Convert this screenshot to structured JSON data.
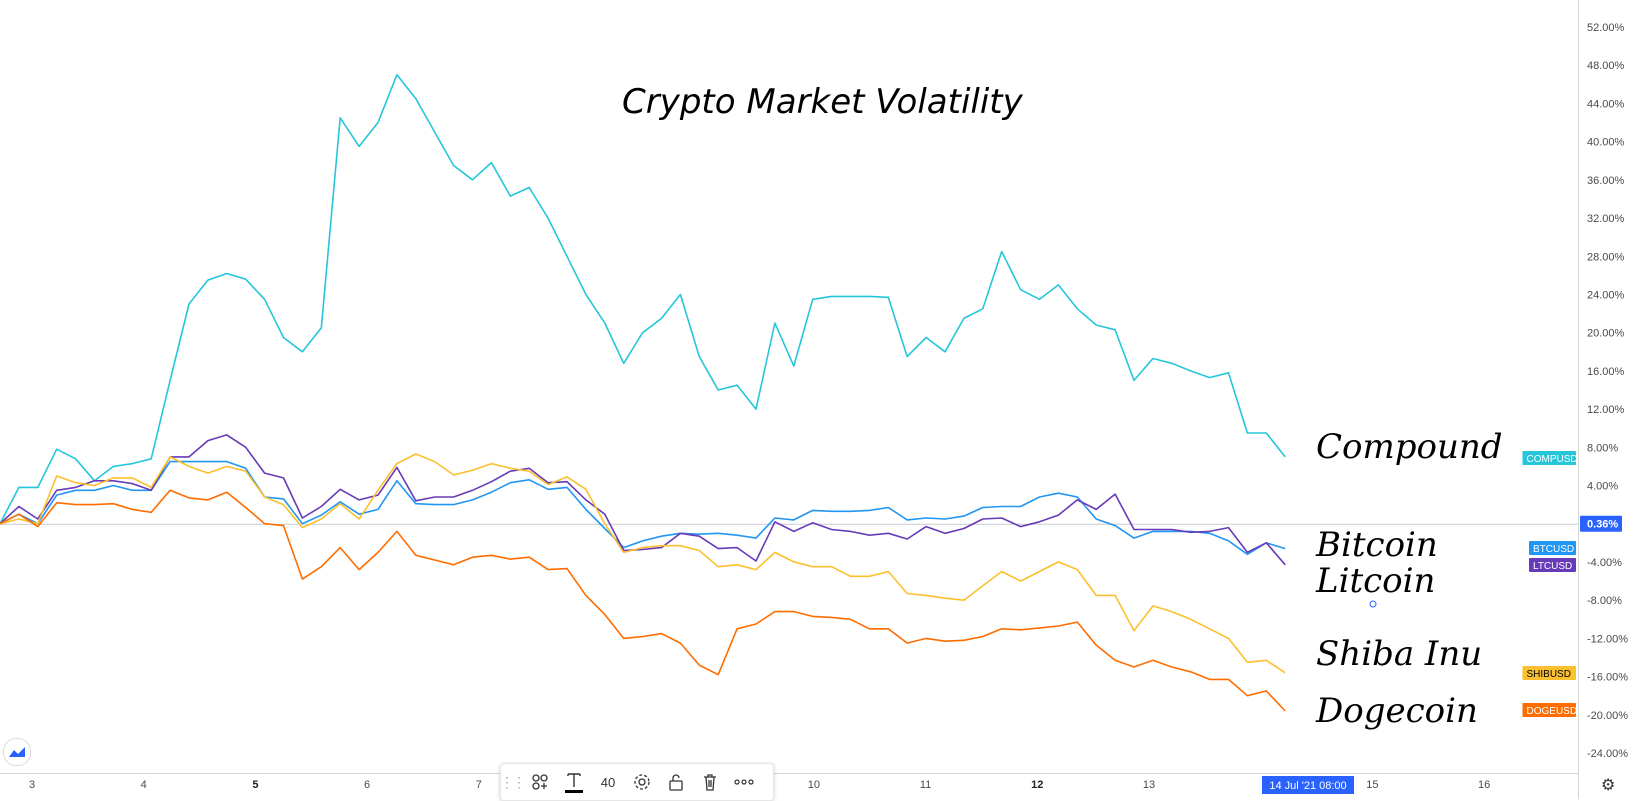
{
  "chart_data": {
    "type": "line",
    "title": "Crypto Market Volatility",
    "x_labels": [
      {
        "label": "3",
        "pos": 2.8,
        "bold": false
      },
      {
        "label": "4",
        "pos": 12.8,
        "bold": false
      },
      {
        "label": "5",
        "pos": 22.8,
        "bold": true
      },
      {
        "label": "6",
        "pos": 32.8,
        "bold": false
      },
      {
        "label": "7",
        "pos": 42.8,
        "bold": false
      },
      {
        "label": "10",
        "pos": 72.8,
        "bold": false
      },
      {
        "label": "11",
        "pos": 82.8,
        "bold": false
      },
      {
        "label": "12",
        "pos": 92.8,
        "bold": true
      },
      {
        "label": "13",
        "pos": 102.8,
        "bold": false
      },
      {
        "label": "15",
        "pos": 122.8,
        "bold": false
      },
      {
        "label": "16",
        "pos": 132.8,
        "bold": false
      }
    ],
    "cursor_label": "14 Jul '21   08:00",
    "ylim": [
      -26,
      54
    ],
    "y_ticks": [
      52,
      48,
      44,
      40,
      36,
      32,
      28,
      24,
      20,
      16,
      12,
      8,
      4,
      -4,
      -8,
      -12,
      -16,
      -20,
      -24
    ],
    "y_tick_labels": [
      "52.00%",
      "48.00%",
      "44.00%",
      "40.00%",
      "36.00%",
      "32.00%",
      "28.00%",
      "24.00%",
      "20.00%",
      "16.00%",
      "12.00%",
      "8.00%",
      "4.00%",
      "-4.00%",
      "-8.00%",
      "-12.00%",
      "-16.00%",
      "-20.00%",
      "-24.00%"
    ],
    "zero_label": "0.36%",
    "colors": {
      "zero_badge": "#2962ff",
      "cursor_badge": "#2962ff",
      "baseline": "#c9cbd4"
    },
    "series": [
      {
        "name": "COMPUSD",
        "annotation": "Compound",
        "color": "#26c6da",
        "last_value": 7.0,
        "values": [
          0,
          3.8,
          3.8,
          7.8,
          6.8,
          4.5,
          6.0,
          6.3,
          6.8,
          15,
          23,
          25.5,
          26.2,
          25.6,
          23.5,
          19.5,
          18,
          20.5,
          42.5,
          39.5,
          42,
          47,
          44.5,
          41,
          37.5,
          36,
          37.8,
          34.3,
          35.2,
          32,
          28,
          24,
          21,
          16.8,
          20,
          21.5,
          24,
          17.5,
          14,
          14.5,
          12,
          21,
          16.5,
          23.5,
          23.8,
          23.8,
          23.8,
          23.7,
          17.5,
          19.5,
          18,
          21.5,
          22.5,
          28.5,
          24.5,
          23.5,
          25,
          22.5,
          20.8,
          20.3,
          15,
          17.3,
          16.8,
          16,
          15.3,
          15.8,
          9.5,
          9.5,
          7.0
        ]
      },
      {
        "name": "BTCUSD",
        "annotation": "Bitcoin",
        "color": "#2196f3",
        "last_value": -2.6,
        "values": [
          0,
          1,
          0,
          3,
          3.5,
          3.5,
          4,
          3.5,
          3.5,
          6.5,
          6.5,
          6.5,
          6.5,
          5.8,
          2.8,
          2.6,
          0,
          0.9,
          2.3,
          1,
          1.5,
          4.5,
          2.1,
          2,
          2,
          2.5,
          3.3,
          4.3,
          4.6,
          3.6,
          3.8,
          1.5,
          -0.5,
          -2.5,
          -1.8,
          -1.3,
          -1,
          -1.1,
          -1,
          -1.2,
          -1.5,
          0.6,
          0.4,
          1.4,
          1.3,
          1.3,
          1.4,
          1.7,
          0.4,
          0.6,
          0.5,
          0.8,
          1.7,
          1.8,
          1.8,
          2.8,
          3.2,
          2.8,
          0.5,
          -0.2,
          -1.5,
          -0.8,
          -0.8,
          -0.8,
          -1,
          -1.8,
          -3.2,
          -2,
          -2.6
        ]
      },
      {
        "name": "LTCUSD",
        "annotation": "Litcoin",
        "color": "#673ab7",
        "last_value": -4.3,
        "values": [
          0,
          1.8,
          0.5,
          3.5,
          3.8,
          4.5,
          4.5,
          4.2,
          3.5,
          7,
          7,
          8.7,
          9.3,
          8,
          5.3,
          4.8,
          0.6,
          1.8,
          3.6,
          2.5,
          3,
          5.9,
          2.4,
          2.8,
          2.8,
          3.5,
          4.4,
          5.5,
          5.8,
          4.3,
          4.4,
          2.5,
          1,
          -2.8,
          -2.7,
          -2.5,
          -1,
          -1.3,
          -2.6,
          -2.5,
          -3.9,
          0.2,
          -0.8,
          0.1,
          -0.6,
          -0.8,
          -1.2,
          -1,
          -1.6,
          -0.3,
          -1,
          -0.5,
          0.5,
          0.6,
          -0.3,
          0.2,
          0.9,
          2.5,
          1.5,
          3.1,
          -0.6,
          -0.6,
          -0.6,
          -0.9,
          -0.8,
          -0.4,
          -3,
          -2,
          -4.3
        ]
      },
      {
        "name": "SHIBUSD",
        "annotation": "Shiba Inu",
        "color": "#fbc02d",
        "last_value": -15.6,
        "values": [
          0,
          0.5,
          0,
          5,
          4.3,
          4,
          4.8,
          4.8,
          3.8,
          7,
          6,
          5.3,
          6,
          5.5,
          2.8,
          2,
          -0.4,
          0.5,
          2.1,
          0.5,
          3.5,
          6.3,
          7.3,
          6.5,
          5.1,
          5.6,
          6.3,
          5.8,
          5.5,
          4.1,
          4.9,
          3.6,
          0,
          -3,
          -2.5,
          -2.3,
          -2.3,
          -2.8,
          -4.5,
          -4.3,
          -4.8,
          -3,
          -4,
          -4.5,
          -4.5,
          -5.5,
          -5.5,
          -5,
          -7.3,
          -7.5,
          -7.8,
          -8,
          -6.5,
          -5,
          -6,
          -5,
          -4,
          -4.8,
          -7.5,
          -7.5,
          -11.2,
          -8.6,
          -9.2,
          -10,
          -11,
          -12,
          -14.5,
          -14.3,
          -15.6
        ]
      },
      {
        "name": "DOGEUSD",
        "annotation": "Dogecoin",
        "color": "#ff6d00",
        "last_value": -19.6,
        "values": [
          0,
          1,
          -0.3,
          2.2,
          2,
          2,
          2.1,
          1.5,
          1.2,
          3.5,
          2.7,
          2.5,
          3.3,
          1.7,
          0,
          -0.2,
          -5.8,
          -4.5,
          -2.5,
          -4.8,
          -3,
          -0.8,
          -3.3,
          -3.8,
          -4.3,
          -3.5,
          -3.3,
          -3.7,
          -3.5,
          -4.8,
          -4.7,
          -7.5,
          -9.5,
          -12,
          -11.8,
          -11.5,
          -12.5,
          -14.8,
          -15.8,
          -11,
          -10.5,
          -9.2,
          -9.2,
          -9.7,
          -9.8,
          -10,
          -11,
          -11,
          -12.5,
          -12,
          -12.3,
          -12.2,
          -11.8,
          -11,
          -11.1,
          -10.9,
          -10.7,
          -10.3,
          -12.7,
          -14.3,
          -15,
          -14.3,
          -15,
          -15.5,
          -16.3,
          -16.3,
          -18,
          -17.5,
          -19.6
        ]
      }
    ]
  },
  "toolbar": {
    "icons": [
      "drag-handle-icon",
      "add-alert-icon",
      "text-tool-icon",
      "font-size",
      "settings-icon",
      "unlock-icon",
      "trash-icon",
      "more-icon"
    ],
    "font_size": "40"
  }
}
